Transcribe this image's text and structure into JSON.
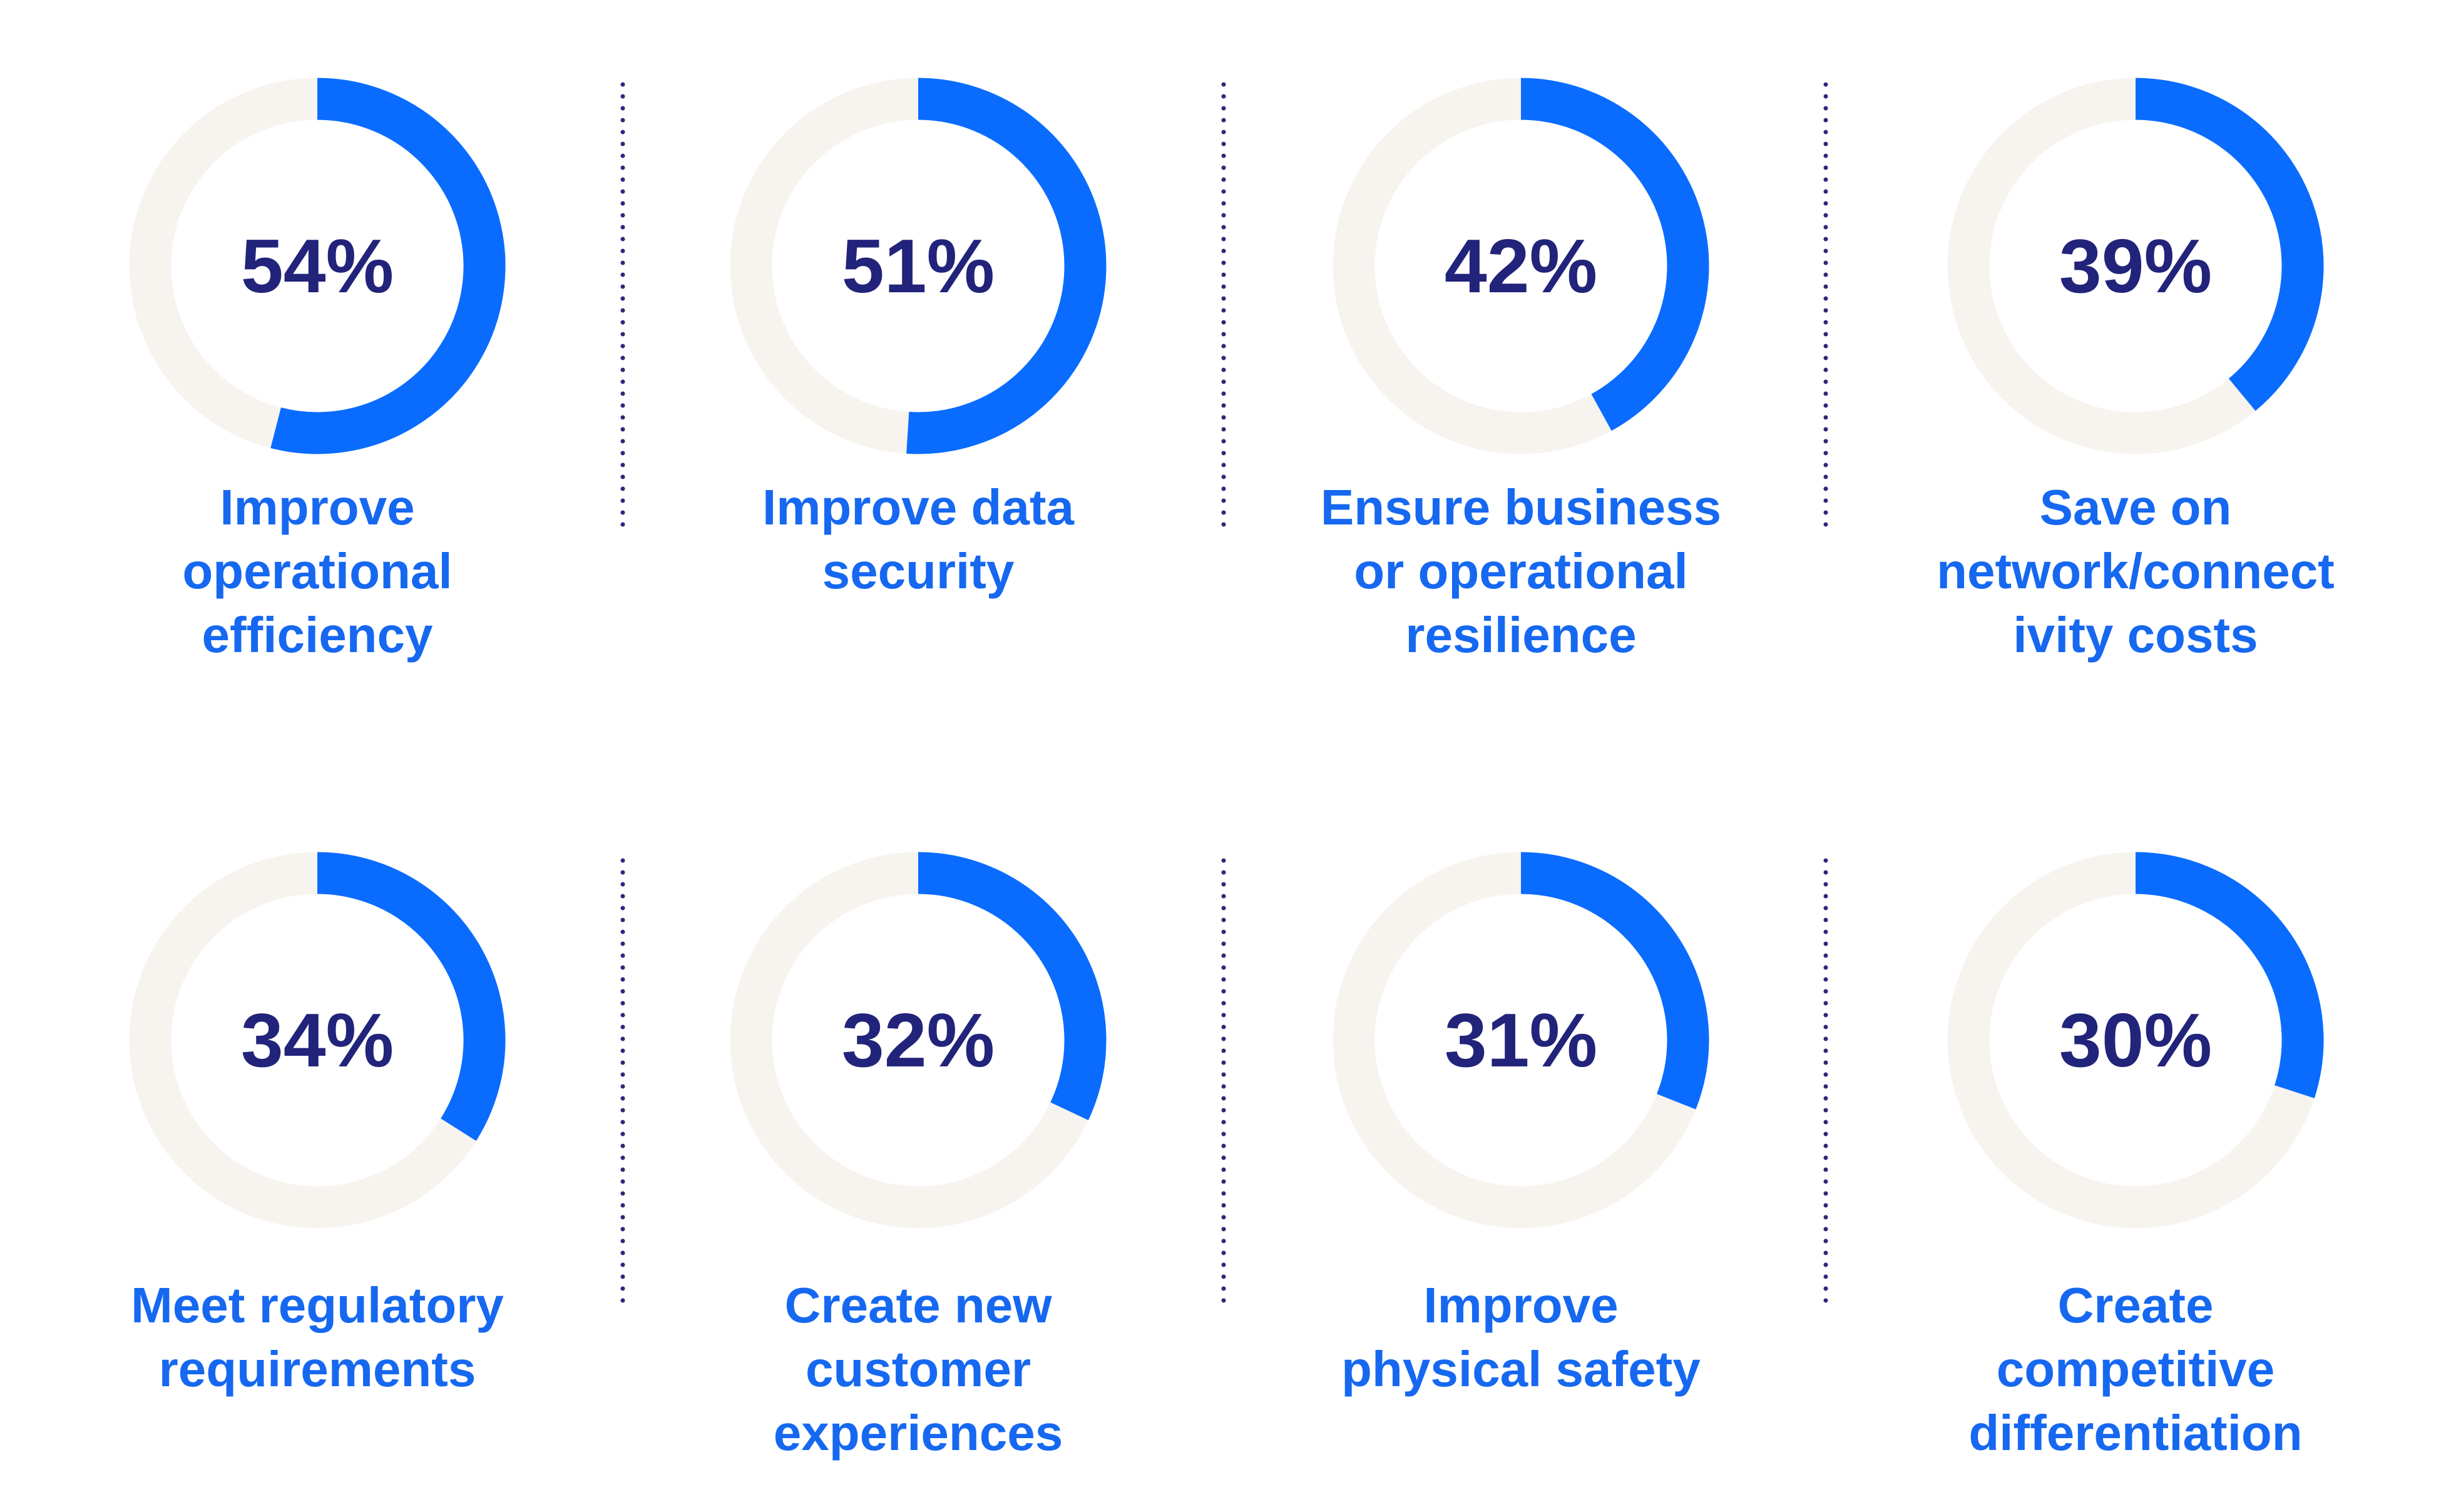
{
  "chart_data": {
    "type": "donut",
    "categories": [
      "Improve\noperational\nefficiency",
      "Improve data\nsecurity",
      "Ensure business\nor operational\nresilience",
      "Save on\nnetwork/connect\nivity costs",
      "Meet regulatory\nrequirements",
      "Create new\ncustomer\nexperiences",
      "Improve\nphysical safety",
      "Create\ncompetitive\ndifferentiation"
    ],
    "values": [
      54,
      51,
      42,
      39,
      34,
      32,
      31,
      30
    ],
    "value_labels": [
      "54%",
      "51%",
      "42%",
      "39%",
      "34%",
      "32%",
      "31%",
      "30%"
    ],
    "color": "#0a6cff",
    "track_color": "#f7f3ef"
  }
}
